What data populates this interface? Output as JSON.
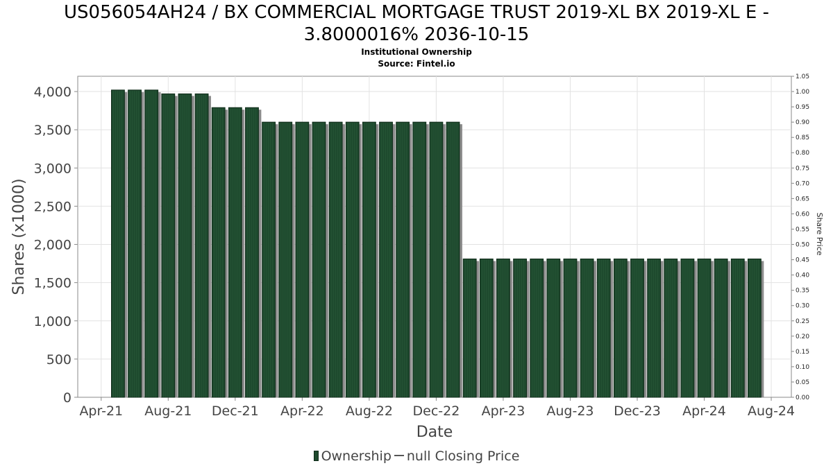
{
  "title": {
    "line1": "US056054AH24 / BX COMMERCIAL MORTGAGE TRUST 2019-XL BX 2019-XL E -",
    "line2": "3.8000016% 2036-10-15"
  },
  "subtitle": "Institutional Ownership",
  "source": "Source: Fintel.io",
  "legend": {
    "ownership": "Ownership",
    "price": "null Closing Price"
  },
  "chart_data": {
    "type": "bar",
    "xlabel": "Date",
    "ylabel": "Shares (x1000)",
    "y2label": "Share Price",
    "ylim": [
      0,
      4200
    ],
    "y2lim": [
      0,
      1.05
    ],
    "grid": true,
    "legend_position": "bottom",
    "yticks": [
      {
        "v": 0,
        "label": "0"
      },
      {
        "v": 500,
        "label": "500"
      },
      {
        "v": 1000,
        "label": "1,000"
      },
      {
        "v": 1500,
        "label": "1,500"
      },
      {
        "v": 2000,
        "label": "2,000"
      },
      {
        "v": 2500,
        "label": "2,500"
      },
      {
        "v": 3000,
        "label": "3,000"
      },
      {
        "v": 3500,
        "label": "3,500"
      },
      {
        "v": 4000,
        "label": "4,000"
      }
    ],
    "y2ticks": [
      "0.00",
      "0.05",
      "0.10",
      "0.15",
      "0.20",
      "0.25",
      "0.30",
      "0.35",
      "0.40",
      "0.45",
      "0.50",
      "0.55",
      "0.60",
      "0.65",
      "0.70",
      "0.75",
      "0.80",
      "0.85",
      "0.90",
      "0.95",
      "1.00",
      "1.05"
    ],
    "xticks": [
      {
        "pos": 0,
        "label": "Apr-21"
      },
      {
        "pos": 4,
        "label": "Aug-21"
      },
      {
        "pos": 8,
        "label": "Dec-21"
      },
      {
        "pos": 12,
        "label": "Apr-22"
      },
      {
        "pos": 16,
        "label": "Aug-22"
      },
      {
        "pos": 20,
        "label": "Dec-22"
      },
      {
        "pos": 24,
        "label": "Apr-23"
      },
      {
        "pos": 28,
        "label": "Aug-23"
      },
      {
        "pos": 32,
        "label": "Dec-23"
      },
      {
        "pos": 36,
        "label": "Apr-24"
      },
      {
        "pos": 40,
        "label": "Aug-24"
      }
    ],
    "x_range_months": [
      -1.4,
      41.2
    ],
    "categories": [
      "May-21",
      "Jun-21",
      "Jul-21",
      "Aug-21",
      "Sep-21",
      "Oct-21",
      "Nov-21",
      "Dec-21",
      "Jan-22",
      "Feb-22",
      "Mar-22",
      "Apr-22",
      "May-22",
      "Jun-22",
      "Jul-22",
      "Aug-22",
      "Sep-22",
      "Oct-22",
      "Nov-22",
      "Dec-22",
      "Jan-23",
      "Feb-23",
      "Mar-23",
      "Apr-23",
      "May-23",
      "Jun-23",
      "Jul-23",
      "Aug-23",
      "Sep-23",
      "Oct-23",
      "Nov-23",
      "Dec-23",
      "Jan-24",
      "Feb-24",
      "Mar-24",
      "Apr-24",
      "May-24",
      "Jun-24",
      "Jul-24"
    ],
    "values": [
      4020,
      4020,
      4020,
      3970,
      3970,
      3970,
      3790,
      3790,
      3790,
      3600,
      3600,
      3600,
      3600,
      3600,
      3600,
      3600,
      3600,
      3600,
      3600,
      3600,
      3600,
      1810,
      1810,
      1810,
      1810,
      1810,
      1810,
      1810,
      1810,
      1810,
      1810,
      1810,
      1810,
      1810,
      1810,
      1810,
      1810,
      1810,
      1810
    ],
    "bar_color": "#1e4a2e"
  }
}
